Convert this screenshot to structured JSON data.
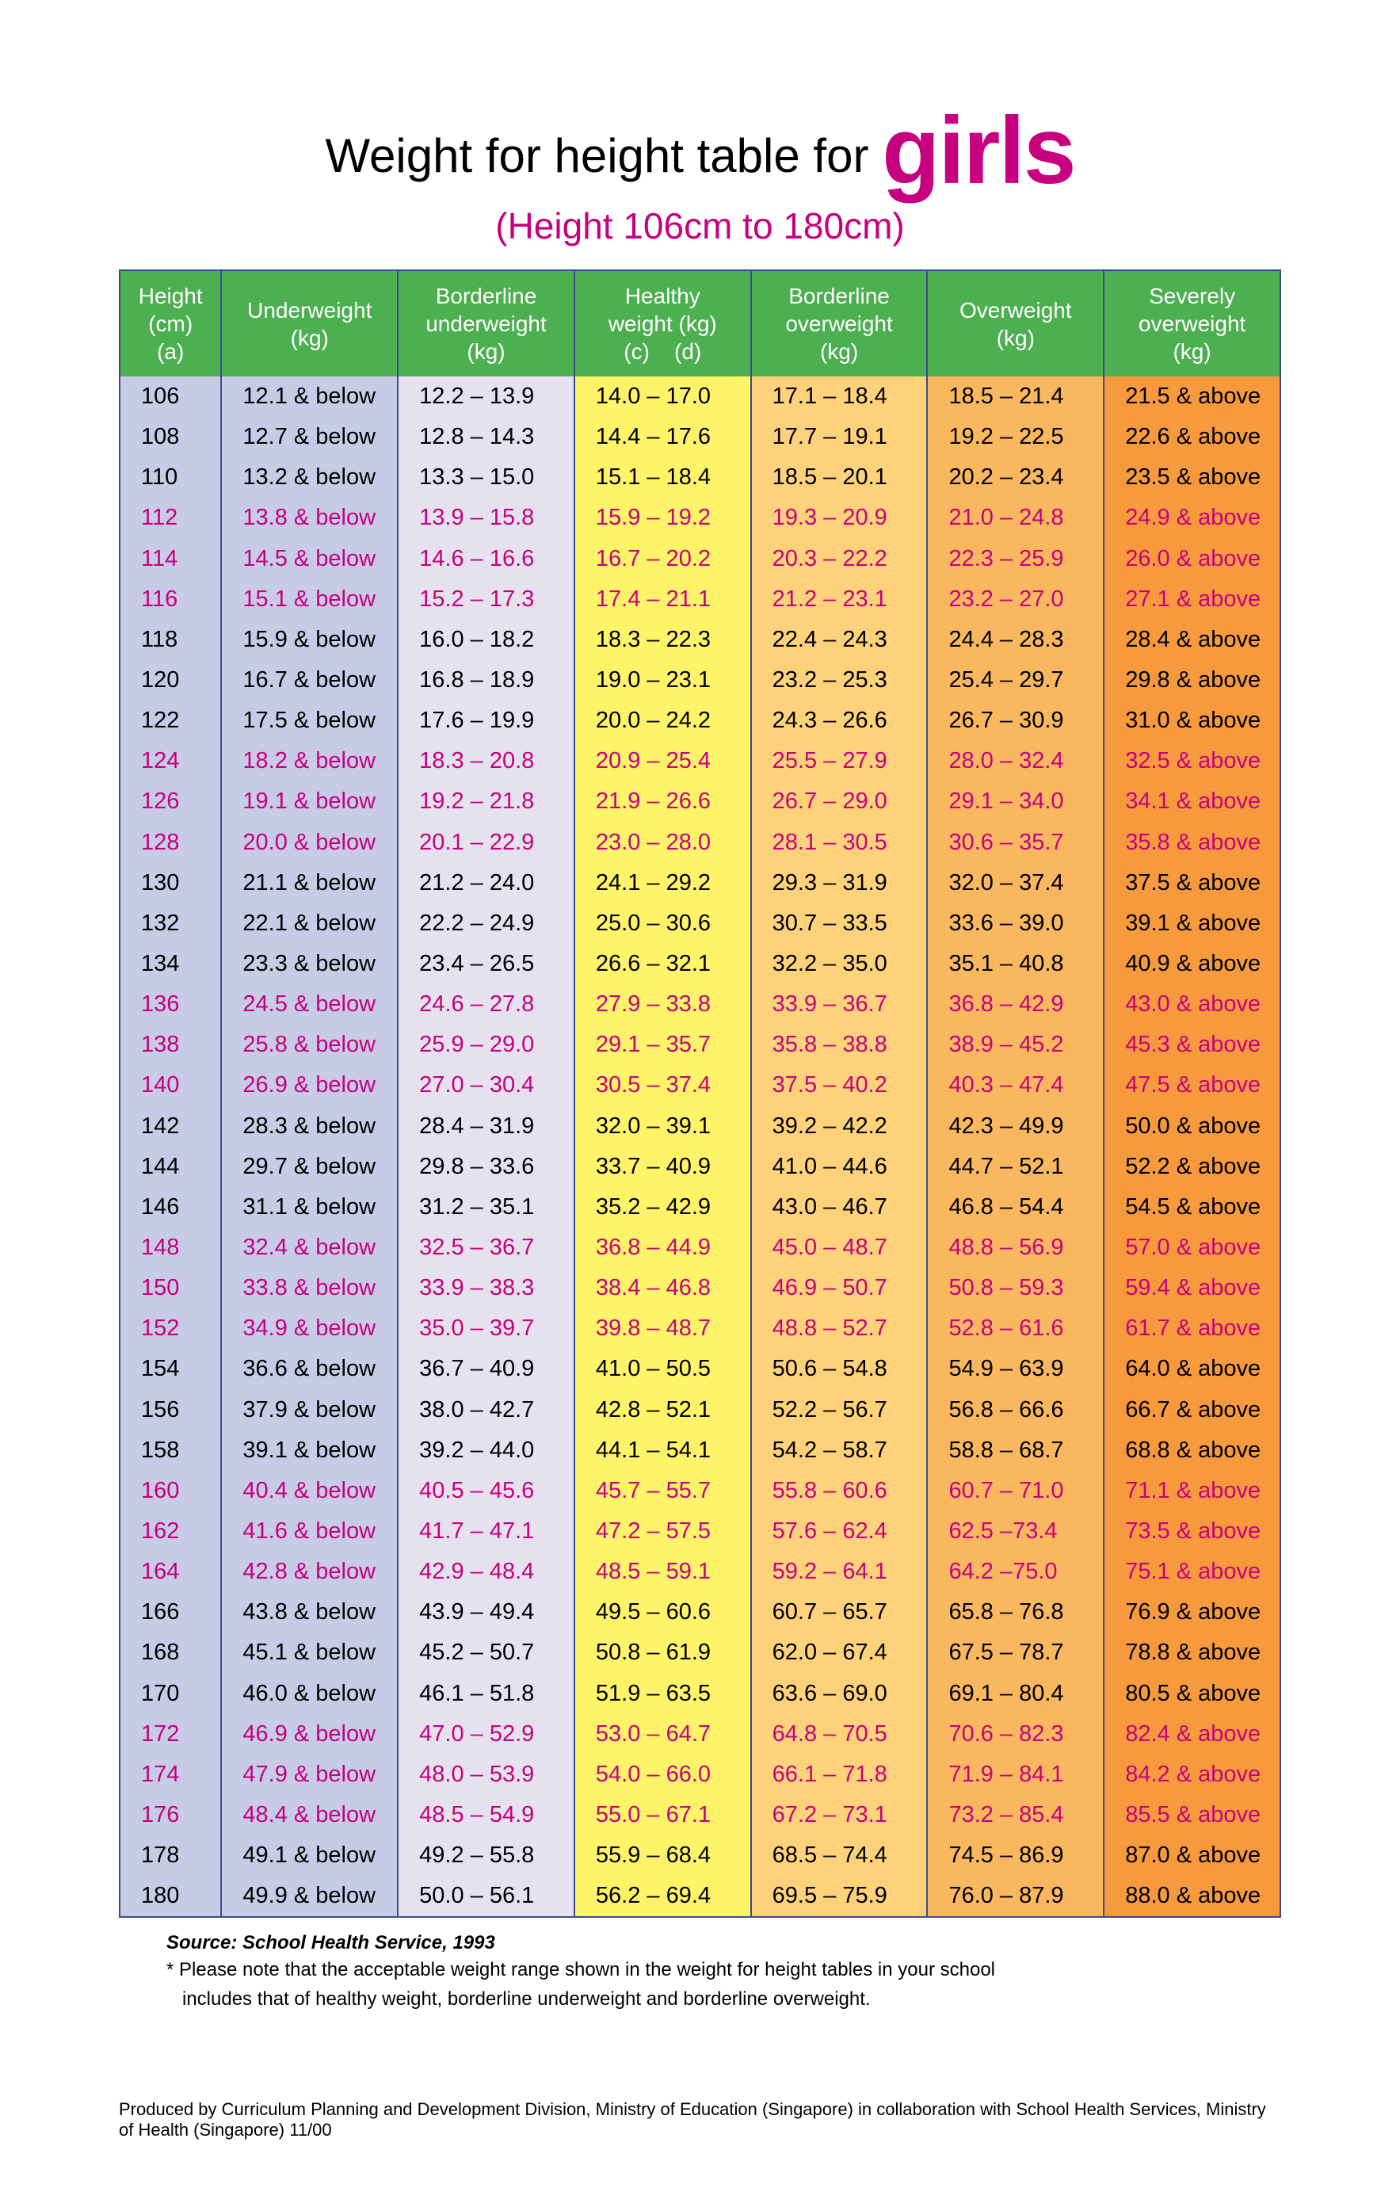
{
  "title_prefix": "Weight for height table for ",
  "title_emph": "girls",
  "subtitle": "(Height 106cm to 180cm)",
  "emph_color": "#c6007e",
  "subtitle_color": "#c6007e",
  "pink_row_color": "#c6007e",
  "black_row_color": "#000000",
  "header_bg": "#4caf50",
  "header_border": "#3f4a8c",
  "columns": [
    {
      "key": "height",
      "label": "Height\n(cm)\n(a)",
      "bg": "#c7cbe6",
      "width_class": "col-h"
    },
    {
      "key": "under",
      "label": "Underweight\n(kg)",
      "bg": "#c7cbe6",
      "width_class": "col-c"
    },
    {
      "key": "border_under",
      "label": "Borderline\nunderweight\n(kg)",
      "bg": "#e6e1ee",
      "width_class": "col-c"
    },
    {
      "key": "healthy",
      "label": "Healthy\nweight (kg)\n(c)    (d)",
      "bg": "#fff36a",
      "width_class": "col-c"
    },
    {
      "key": "border_over",
      "label": "Borderline\noverweight\n(kg)",
      "bg": "#fdd27a",
      "width_class": "col-c"
    },
    {
      "key": "over",
      "label": "Overweight\n(kg)",
      "bg": "#f9b760",
      "width_class": "col-c"
    },
    {
      "key": "severe",
      "label": "Severely\noverweight\n(kg)",
      "bg": "#f79a3e",
      "width_class": "col-c"
    }
  ],
  "rows": [
    {
      "pink": false,
      "c": [
        "106",
        "12.1 & below",
        "12.2 – 13.9",
        "14.0 – 17.0",
        "17.1 – 18.4",
        "18.5 – 21.4",
        "21.5 & above"
      ]
    },
    {
      "pink": false,
      "c": [
        "108",
        "12.7 & below",
        "12.8 – 14.3",
        "14.4 – 17.6",
        "17.7 – 19.1",
        "19.2 – 22.5",
        "22.6 & above"
      ]
    },
    {
      "pink": false,
      "c": [
        "110",
        "13.2 & below",
        "13.3 – 15.0",
        "15.1 – 18.4",
        "18.5 – 20.1",
        "20.2 – 23.4",
        "23.5 & above"
      ]
    },
    {
      "pink": true,
      "c": [
        "112",
        "13.8 & below",
        "13.9 – 15.8",
        "15.9 – 19.2",
        "19.3 – 20.9",
        "21.0 – 24.8",
        "24.9 & above"
      ]
    },
    {
      "pink": true,
      "c": [
        "114",
        "14.5 & below",
        "14.6 – 16.6",
        "16.7 – 20.2",
        "20.3 – 22.2",
        "22.3 – 25.9",
        "26.0 & above"
      ]
    },
    {
      "pink": true,
      "c": [
        "116",
        "15.1 & below",
        "15.2 – 17.3",
        "17.4 – 21.1",
        "21.2 – 23.1",
        "23.2 – 27.0",
        "27.1 & above"
      ]
    },
    {
      "pink": false,
      "c": [
        "118",
        "15.9 & below",
        "16.0 – 18.2",
        "18.3 – 22.3",
        "22.4 – 24.3",
        "24.4 – 28.3",
        "28.4 & above"
      ]
    },
    {
      "pink": false,
      "c": [
        "120",
        "16.7 & below",
        "16.8 – 18.9",
        "19.0 – 23.1",
        "23.2 – 25.3",
        "25.4 – 29.7",
        "29.8 & above"
      ]
    },
    {
      "pink": false,
      "c": [
        "122",
        "17.5 & below",
        "17.6 – 19.9",
        "20.0 – 24.2",
        "24.3 – 26.6",
        "26.7 – 30.9",
        "31.0 & above"
      ]
    },
    {
      "pink": true,
      "c": [
        "124",
        "18.2 & below",
        "18.3 – 20.8",
        "20.9 – 25.4",
        "25.5 – 27.9",
        "28.0 – 32.4",
        "32.5 & above"
      ]
    },
    {
      "pink": true,
      "c": [
        "126",
        "19.1 & below",
        "19.2 – 21.8",
        "21.9 – 26.6",
        "26.7 – 29.0",
        "29.1 – 34.0",
        "34.1 & above"
      ]
    },
    {
      "pink": true,
      "c": [
        "128",
        "20.0 & below",
        "20.1 – 22.9",
        "23.0 – 28.0",
        "28.1 – 30.5",
        "30.6 – 35.7",
        "35.8 & above"
      ]
    },
    {
      "pink": false,
      "c": [
        "130",
        "21.1 & below",
        "21.2 – 24.0",
        "24.1 – 29.2",
        "29.3 – 31.9",
        "32.0 – 37.4",
        "37.5 & above"
      ]
    },
    {
      "pink": false,
      "c": [
        "132",
        "22.1 & below",
        "22.2 – 24.9",
        "25.0 – 30.6",
        "30.7 – 33.5",
        "33.6 – 39.0",
        "39.1 & above"
      ]
    },
    {
      "pink": false,
      "c": [
        "134",
        "23.3 & below",
        "23.4 – 26.5",
        "26.6 – 32.1",
        "32.2 – 35.0",
        "35.1 – 40.8",
        "40.9 & above"
      ]
    },
    {
      "pink": true,
      "c": [
        "136",
        "24.5 & below",
        "24.6 – 27.8",
        "27.9 – 33.8",
        "33.9 – 36.7",
        "36.8 – 42.9",
        "43.0 & above"
      ]
    },
    {
      "pink": true,
      "c": [
        "138",
        "25.8 & below",
        "25.9 – 29.0",
        "29.1 – 35.7",
        "35.8 – 38.8",
        "38.9 – 45.2",
        "45.3 & above"
      ]
    },
    {
      "pink": true,
      "c": [
        "140",
        "26.9 & below",
        "27.0 – 30.4",
        "30.5 – 37.4",
        "37.5 – 40.2",
        "40.3 – 47.4",
        "47.5 & above"
      ]
    },
    {
      "pink": false,
      "c": [
        "142",
        "28.3 & below",
        "28.4 – 31.9",
        "32.0 – 39.1",
        "39.2 – 42.2",
        "42.3 – 49.9",
        "50.0 & above"
      ]
    },
    {
      "pink": false,
      "c": [
        "144",
        "29.7 & below",
        "29.8 – 33.6",
        "33.7 – 40.9",
        "41.0 – 44.6",
        "44.7 – 52.1",
        "52.2 & above"
      ]
    },
    {
      "pink": false,
      "c": [
        "146",
        "31.1 & below",
        "31.2 – 35.1",
        "35.2 – 42.9",
        "43.0 – 46.7",
        "46.8 – 54.4",
        "54.5 & above"
      ]
    },
    {
      "pink": true,
      "c": [
        "148",
        "32.4 & below",
        "32.5 – 36.7",
        "36.8 – 44.9",
        "45.0 – 48.7",
        "48.8 – 56.9",
        "57.0 & above"
      ]
    },
    {
      "pink": true,
      "c": [
        "150",
        "33.8 & below",
        "33.9 – 38.3",
        "38.4 – 46.8",
        "46.9 – 50.7",
        "50.8 – 59.3",
        "59.4 & above"
      ]
    },
    {
      "pink": true,
      "c": [
        "152",
        "34.9 & below",
        "35.0 – 39.7",
        "39.8 – 48.7",
        "48.8 – 52.7",
        "52.8 – 61.6",
        "61.7 & above"
      ]
    },
    {
      "pink": false,
      "c": [
        "154",
        "36.6 & below",
        "36.7 – 40.9",
        "41.0 – 50.5",
        "50.6 – 54.8",
        "54.9 – 63.9",
        "64.0 & above"
      ]
    },
    {
      "pink": false,
      "c": [
        "156",
        "37.9 & below",
        "38.0 – 42.7",
        "42.8 – 52.1",
        "52.2 – 56.7",
        "56.8 – 66.6",
        "66.7 & above"
      ]
    },
    {
      "pink": false,
      "c": [
        "158",
        "39.1 & below",
        "39.2 – 44.0",
        "44.1 – 54.1",
        "54.2 – 58.7",
        "58.8 – 68.7",
        "68.8 & above"
      ]
    },
    {
      "pink": true,
      "c": [
        "160",
        "40.4 & below",
        "40.5 – 45.6",
        "45.7 – 55.7",
        "55.8 – 60.6",
        "60.7 – 71.0",
        "71.1 & above"
      ]
    },
    {
      "pink": true,
      "c": [
        "162",
        "41.6 & below",
        "41.7 – 47.1",
        "47.2 – 57.5",
        "57.6 – 62.4",
        "62.5 –73.4",
        "73.5 & above"
      ]
    },
    {
      "pink": true,
      "c": [
        "164",
        "42.8 & below",
        "42.9 – 48.4",
        "48.5 – 59.1",
        "59.2 – 64.1",
        "64.2 –75.0",
        "75.1 & above"
      ]
    },
    {
      "pink": false,
      "c": [
        "166",
        "43.8 & below",
        "43.9 – 49.4",
        "49.5 – 60.6",
        "60.7 – 65.7",
        "65.8 – 76.8",
        "76.9 & above"
      ]
    },
    {
      "pink": false,
      "c": [
        "168",
        "45.1 & below",
        "45.2 – 50.7",
        "50.8 – 61.9",
        "62.0 – 67.4",
        "67.5 – 78.7",
        "78.8 & above"
      ]
    },
    {
      "pink": false,
      "c": [
        "170",
        "46.0 & below",
        "46.1 – 51.8",
        "51.9 – 63.5",
        "63.6 – 69.0",
        "69.1 – 80.4",
        "80.5 & above"
      ]
    },
    {
      "pink": true,
      "c": [
        "172",
        "46.9 & below",
        "47.0 – 52.9",
        "53.0 – 64.7",
        "64.8 – 70.5",
        "70.6 – 82.3",
        "82.4 & above"
      ]
    },
    {
      "pink": true,
      "c": [
        "174",
        "47.9 & below",
        "48.0 – 53.9",
        "54.0 – 66.0",
        "66.1 – 71.8",
        "71.9 – 84.1",
        "84.2 & above"
      ]
    },
    {
      "pink": true,
      "c": [
        "176",
        "48.4 & below",
        "48.5 – 54.9",
        "55.0 – 67.1",
        "67.2 – 73.1",
        "73.2 – 85.4",
        "85.5 & above"
      ]
    },
    {
      "pink": false,
      "c": [
        "178",
        "49.1 & below",
        "49.2 – 55.8",
        "55.9 – 68.4",
        "68.5 – 74.4",
        "74.5 – 86.9",
        "87.0 & above"
      ]
    },
    {
      "pink": false,
      "c": [
        "180",
        "49.9 & below",
        "50.0 – 56.1",
        "56.2 – 69.4",
        "69.5 – 75.9",
        "76.0 – 87.9",
        "88.0 & above"
      ]
    }
  ],
  "source": "Source: School Health Service, 1993",
  "note_line1": "* Please note that the acceptable weight range shown in the weight for height tables in your school",
  "note_line2": "   includes that of healthy weight, borderline underweight and borderline overweight.",
  "producer": "Produced by Curriculum Planning and Development Division, Ministry of Education (Singapore) in collaboration with School Health Services, Ministry of Health (Singapore) 11/00"
}
